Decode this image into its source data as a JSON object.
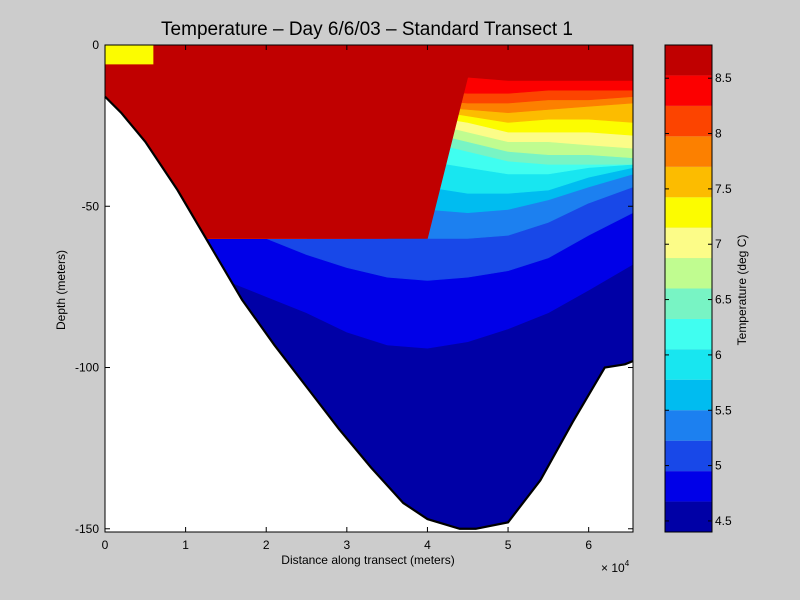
{
  "chart_data": {
    "type": "filled-contour",
    "title": "Temperature – Day 6/6/03 – Standard Transect 1",
    "xlabel": "Distance along transect (meters)",
    "ylabel": "Depth (meters)",
    "x_exponent_label": "× 10",
    "x_exponent_power": "4",
    "xlim": [
      0,
      65500
    ],
    "ylim": [
      -151,
      0
    ],
    "x_ticks": [
      0,
      10000,
      20000,
      30000,
      40000,
      50000,
      60000
    ],
    "x_tick_labels": [
      "0",
      "1",
      "2",
      "3",
      "4",
      "5",
      "6"
    ],
    "y_ticks": [
      0,
      -50,
      -100,
      -150
    ],
    "y_tick_labels": [
      "0",
      "-50",
      "-100",
      "-150"
    ],
    "colorbar": {
      "label": "Temperature (deg C)",
      "range": [
        4.4,
        8.8
      ],
      "levels": [
        4.4,
        4.675,
        4.95,
        5.225,
        5.5,
        5.775,
        6.05,
        6.325,
        6.6,
        6.875,
        7.15,
        7.425,
        7.7,
        7.975,
        8.25,
        8.525,
        8.8
      ],
      "colors": [
        "#0000a6",
        "#0000e8",
        "#1848e8",
        "#1c80f0",
        "#00bcf0",
        "#18e6f0",
        "#40fef0",
        "#78f4c4",
        "#c0fc90",
        "#fcfc88",
        "#fcfc00",
        "#fcbc00",
        "#fc8000",
        "#fc4400",
        "#fc0000",
        "#c00000"
      ],
      "ticks": [
        4.5,
        5,
        5.5,
        6,
        6.5,
        7,
        7.5,
        8,
        8.5
      ],
      "tick_labels": [
        "4.5",
        "5",
        "5.5",
        "6",
        "6.5",
        "7",
        "7.5",
        "8",
        "8.5"
      ]
    },
    "bottom_profile": {
      "x": [
        0,
        2000,
        5000,
        9000,
        13000,
        17000,
        21000,
        25000,
        29000,
        33000,
        37000,
        40000,
        44000,
        46000,
        50000,
        54000,
        58000,
        62000,
        64500,
        65500
      ],
      "depth": [
        -16,
        -21,
        -30,
        -45,
        -62,
        -79,
        -93,
        -106,
        -119,
        -131,
        -142,
        -147,
        -150,
        -150,
        -148,
        -135,
        -117,
        -100,
        -99,
        -98
      ]
    },
    "isotherm_depths_x": [
      0,
      5000,
      10000,
      15000,
      20000,
      25000,
      30000,
      35000,
      40000,
      45000,
      50000,
      55000,
      60000,
      65500
    ],
    "isotherm_depths": [
      {
        "t": 8.525,
        "depth": [
          -60,
          -60,
          -60,
          -60,
          -60,
          -60,
          -60,
          -60,
          -60,
          -10,
          -11,
          -11,
          -11,
          -11
        ]
      },
      {
        "t": 8.25,
        "depth": [
          -60,
          -60,
          -60,
          -60,
          -60,
          -60,
          -60,
          -60,
          -14,
          -15,
          -15,
          -14,
          -14,
          -14
        ]
      },
      {
        "t": 7.975,
        "depth": [
          -60,
          -60,
          -60,
          -60,
          -60,
          -60,
          -60,
          -14,
          -17,
          -18,
          -18,
          -17,
          -17,
          -16
        ]
      },
      {
        "t": 7.7,
        "depth": [
          -60,
          -60,
          -60,
          -60,
          -60,
          -60,
          -11,
          -16,
          -19,
          -20,
          -21,
          -20,
          -19,
          -18
        ]
      },
      {
        "t": 7.425,
        "depth": [
          -60,
          -60,
          -60,
          -60,
          -60,
          -60,
          -13,
          -17,
          -20,
          -22,
          -24,
          -23,
          -23,
          -24
        ]
      },
      {
        "t": 7.15,
        "depth": [
          -2,
          -3,
          -60,
          -60,
          -60,
          -10,
          -15,
          -18,
          -22,
          -24,
          -27,
          -27,
          -27,
          -28
        ]
      },
      {
        "t": 6.875,
        "depth": [
          -5,
          -5,
          -60,
          -60,
          -60,
          -14,
          -18,
          -21,
          -24,
          -27,
          -30,
          -30,
          -31,
          -32
        ]
      },
      {
        "t": 6.6,
        "depth": [
          -8,
          -9,
          -10,
          -11,
          -12,
          -17,
          -21,
          -24,
          -27,
          -30,
          -33,
          -34,
          -34,
          -35
        ]
      },
      {
        "t": 6.325,
        "depth": [
          -11,
          -12,
          -13,
          -14,
          -15,
          -20,
          -25,
          -28,
          -30,
          -33,
          -36,
          -37,
          -37,
          -37
        ]
      },
      {
        "t": 6.05,
        "depth": [
          -14,
          -16,
          -18,
          -19,
          -21,
          -25,
          -30,
          -34,
          -36,
          -38,
          -40,
          -40,
          -38,
          -37
        ]
      },
      {
        "t": 5.775,
        "depth": [
          -17,
          -20,
          -23,
          -25,
          -27,
          -31,
          -36,
          -41,
          -44,
          -46,
          -46,
          -45,
          -41,
          -38
        ]
      },
      {
        "t": 5.5,
        "depth": [
          -20,
          -24,
          -28,
          -31,
          -33,
          -38,
          -43,
          -48,
          -51,
          -52,
          -51,
          -48,
          -44,
          -40
        ]
      },
      {
        "t": 5.225,
        "depth": [
          -25,
          -30,
          -37,
          -42,
          -47,
          -52,
          -56,
          -59,
          -60,
          -60,
          -59,
          -55,
          -49,
          -44
        ]
      },
      {
        "t": 4.95,
        "depth": [
          -32,
          -40,
          -49,
          -55,
          -60,
          -65,
          -69,
          -72,
          -73,
          -72,
          -70,
          -66,
          -59,
          -52
        ]
      },
      {
        "t": 4.675,
        "depth": [
          -45,
          -55,
          -65,
          -73,
          -78,
          -83,
          -89,
          -93,
          -94,
          -92,
          -88,
          -83,
          -76,
          -68
        ]
      }
    ],
    "isotherm_shallow_pockets": [
      {
        "t": 7.15,
        "x": [
          0,
          6000
        ],
        "depth_top": [
          0,
          0
        ],
        "depth_bottom": [
          -6,
          -6
        ]
      }
    ]
  }
}
